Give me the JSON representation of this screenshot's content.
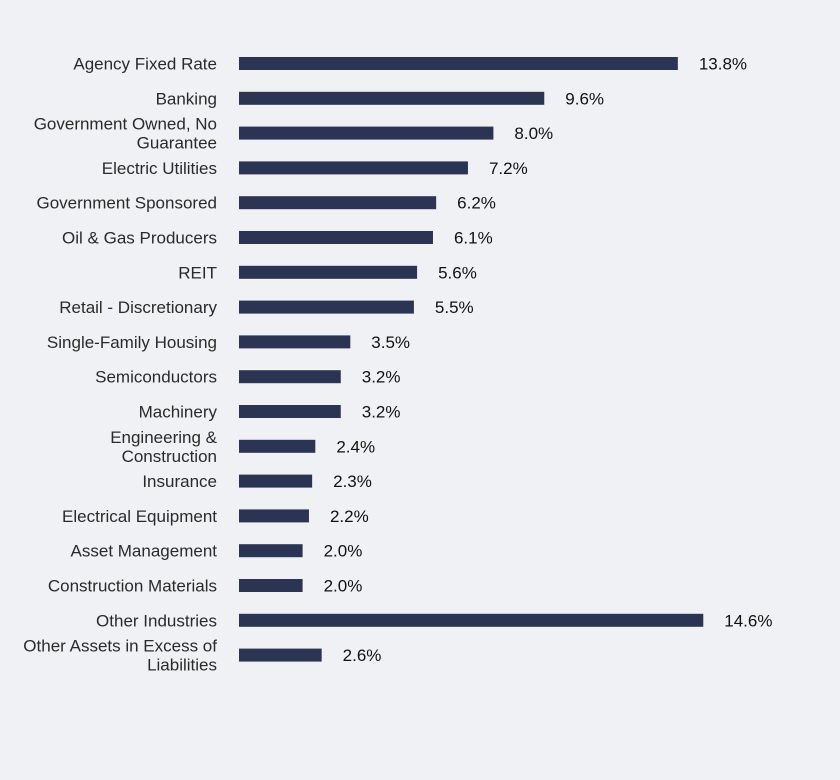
{
  "chart_data": {
    "type": "bar",
    "orientation": "horizontal",
    "categories": [
      "Agency Fixed Rate",
      "Banking",
      "Government Owned, No Guarantee",
      "Electric Utilities",
      "Government Sponsored",
      "Oil & Gas Producers",
      "REIT",
      "Retail - Discretionary",
      "Single-Family Housing",
      "Semiconductors",
      "Machinery",
      "Engineering & Construction",
      "Insurance",
      "Electrical Equipment",
      "Asset Management",
      "Construction Materials",
      "Other Industries",
      "Other Assets in Excess of Liabilities"
    ],
    "values": [
      13.8,
      9.6,
      8.0,
      7.2,
      6.2,
      6.1,
      5.6,
      5.5,
      3.5,
      3.2,
      3.2,
      2.4,
      2.3,
      2.2,
      2.0,
      2.0,
      14.6,
      2.6
    ],
    "value_labels": [
      "13.8%",
      "9.6%",
      "8.0%",
      "7.2%",
      "6.2%",
      "6.1%",
      "5.6%",
      "5.5%",
      "3.5%",
      "3.2%",
      "3.2%",
      "2.4%",
      "2.3%",
      "2.2%",
      "2.0%",
      "2.0%",
      "14.6%",
      "2.6%"
    ],
    "title": "",
    "xlabel": "",
    "ylabel": "",
    "xlim": [
      0,
      14.6
    ],
    "grid": false,
    "legend": "none",
    "bar_color": "#2b3553",
    "background_color": "#f0f1f4"
  }
}
